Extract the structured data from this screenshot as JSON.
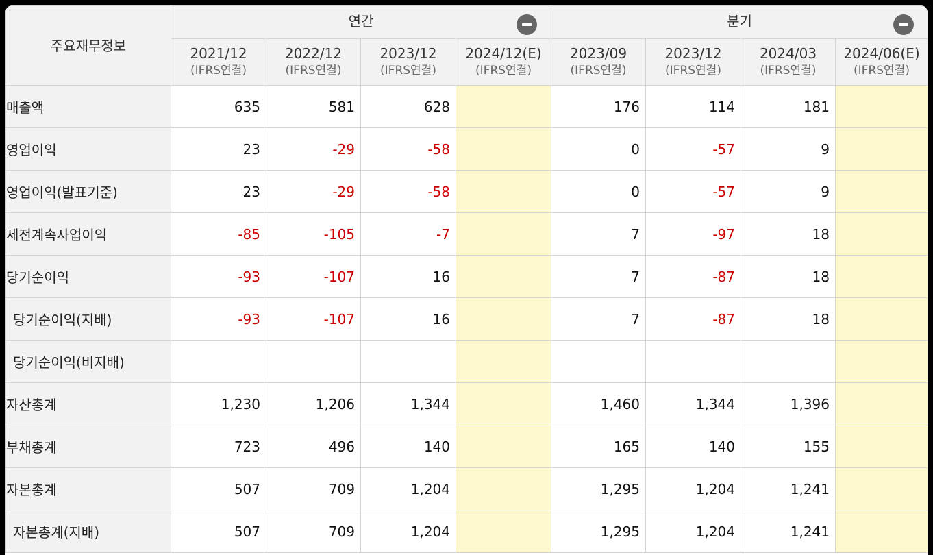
{
  "table": {
    "corner_label": "주요재무정보",
    "groups": [
      {
        "label": "연간"
      },
      {
        "label": "분기"
      }
    ],
    "periods": [
      {
        "year": "2021/12",
        "type": "(IFRS연결)"
      },
      {
        "year": "2022/12",
        "type": "(IFRS연결)"
      },
      {
        "year": "2023/12",
        "type": "(IFRS연결)"
      },
      {
        "year": "2024/12(E)",
        "type": "(IFRS연결)"
      },
      {
        "year": "2023/09",
        "type": "(IFRS연결)"
      },
      {
        "year": "2023/12",
        "type": "(IFRS연결)"
      },
      {
        "year": "2024/03",
        "type": "(IFRS연결)"
      },
      {
        "year": "2024/06(E)",
        "type": "(IFRS연결)"
      }
    ],
    "rows": [
      {
        "label": "매출액",
        "values": [
          "635",
          "581",
          "628",
          "",
          "176",
          "114",
          "181",
          ""
        ]
      },
      {
        "label": "영업이익",
        "values": [
          "23",
          "-29",
          "-58",
          "",
          "0",
          "-57",
          "9",
          ""
        ]
      },
      {
        "label": "영업이익(발표기준)",
        "values": [
          "23",
          "-29",
          "-58",
          "",
          "0",
          "-57",
          "9",
          ""
        ]
      },
      {
        "label": "세전계속사업이익",
        "values": [
          "-85",
          "-105",
          "-7",
          "",
          "7",
          "-97",
          "18",
          ""
        ]
      },
      {
        "label": "당기순이익",
        "values": [
          "-93",
          "-107",
          "16",
          "",
          "7",
          "-87",
          "18",
          ""
        ]
      },
      {
        "label": "당기순이익(지배)",
        "values": [
          "-93",
          "-107",
          "16",
          "",
          "7",
          "-87",
          "18",
          ""
        ]
      },
      {
        "label": "당기순이익(비지배)",
        "values": [
          "",
          "",
          "",
          "",
          "",
          "",
          "",
          ""
        ]
      },
      {
        "label": "자산총계",
        "values": [
          "1,230",
          "1,206",
          "1,344",
          "",
          "1,460",
          "1,344",
          "1,396",
          ""
        ]
      },
      {
        "label": "부채총계",
        "values": [
          "723",
          "496",
          "140",
          "",
          "165",
          "140",
          "155",
          ""
        ]
      },
      {
        "label": "자본총계",
        "values": [
          "507",
          "709",
          "1,204",
          "",
          "1,295",
          "1,204",
          "1,241",
          ""
        ]
      },
      {
        "label": "자본총계(지배)",
        "values": [
          "507",
          "709",
          "1,204",
          "",
          "1,295",
          "1,204",
          "1,241",
          ""
        ]
      }
    ]
  },
  "colors": {
    "negative": "#cc0000",
    "estimate_bg": "#fdf8cd",
    "header_bg": "#f2f2f2"
  }
}
